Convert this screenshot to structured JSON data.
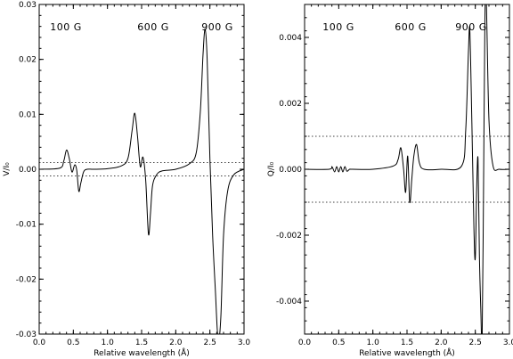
{
  "chart_data": [
    {
      "type": "line",
      "panel": "left",
      "xlabel": "Relative wavelength (Å)",
      "ylabel": "V/I₀",
      "xlim": [
        0.0,
        3.0
      ],
      "ylim": [
        -0.03,
        0.03
      ],
      "xticks": [
        "0.0",
        "0.5",
        "1.0",
        "1.5",
        "2.0",
        "2.5",
        "3.0"
      ],
      "yticks": [
        "-0.03",
        "-0.02",
        "-0.01",
        "0.00",
        "0.01",
        "0.02",
        "0.03"
      ],
      "annotations": [
        "100 G",
        "600 G",
        "900 G"
      ],
      "thresholds": [
        0.0012,
        -0.0012
      ],
      "series": [
        {
          "x": [
            0.0,
            0.3,
            0.36,
            0.4,
            0.44,
            0.48,
            0.52,
            0.55,
            0.58,
            0.61,
            0.65,
            0.7,
            0.8,
            1.0,
            1.2,
            1.3,
            1.36,
            1.4,
            1.44,
            1.48,
            1.52,
            1.56,
            1.6,
            1.63,
            1.66,
            1.72,
            1.8,
            2.0,
            2.2,
            2.3,
            2.36,
            2.4,
            2.43,
            2.46,
            2.5,
            2.54,
            2.58,
            2.62,
            2.66,
            2.7,
            2.76,
            2.85,
            3.0
          ],
          "values": [
            0.0,
            0.0002,
            0.0015,
            0.0035,
            0.002,
            -0.0005,
            0.0008,
            -0.0002,
            -0.004,
            -0.0025,
            -0.0005,
            0.0,
            0.0,
            0.0001,
            0.0006,
            0.002,
            0.007,
            0.0102,
            0.006,
            0.0005,
            0.0022,
            -0.002,
            -0.0118,
            -0.008,
            -0.003,
            -0.001,
            -0.0003,
            0.0,
            0.001,
            0.003,
            0.0105,
            0.021,
            0.0255,
            0.02,
            0.002,
            -0.012,
            -0.022,
            -0.031,
            -0.027,
            -0.012,
            -0.004,
            -0.001,
            0.0
          ]
        }
      ]
    },
    {
      "type": "line",
      "panel": "right",
      "xlabel": "Relative wavelength (Å)",
      "ylabel": "Q/I₀",
      "xlim": [
        0.0,
        3.0
      ],
      "ylim": [
        -0.005,
        0.005
      ],
      "xticks": [
        "0.0",
        "0.5",
        "1.0",
        "1.5",
        "2.0",
        "2.5",
        "3.0"
      ],
      "yticks": [
        "-0.004",
        "-0.002",
        "0.000",
        "0.002",
        "0.004"
      ],
      "annotations": [
        "100 G",
        "600 G",
        "900 G"
      ],
      "thresholds": [
        0.001,
        -0.001
      ],
      "series": [
        {
          "x": [
            0.0,
            0.36,
            0.4,
            0.44,
            0.47,
            0.5,
            0.53,
            0.56,
            0.59,
            0.62,
            0.66,
            0.7,
            1.0,
            1.3,
            1.37,
            1.41,
            1.45,
            1.48,
            1.51,
            1.54,
            1.57,
            1.6,
            1.64,
            1.68,
            1.75,
            2.0,
            2.3,
            2.36,
            2.4,
            2.42,
            2.45,
            2.48,
            2.5,
            2.52,
            2.54,
            2.56,
            2.58,
            2.6,
            2.62,
            2.64,
            2.66,
            2.7,
            2.76,
            2.85,
            3.0
          ],
          "values": [
            0.0,
            0.0,
            8e-05,
            -8e-05,
            8e-05,
            -8e-05,
            8e-05,
            -8e-05,
            8e-05,
            -6e-05,
            0.0,
            0.0,
            0.0,
            0.0001,
            0.0003,
            0.00065,
            0.0,
            -0.0007,
            0.0004,
            -0.001,
            -0.0003,
            0.0004,
            0.00075,
            0.0002,
            0.0,
            0.0,
            0.0001,
            0.0012,
            0.0036,
            0.0042,
            0.0014,
            -0.0018,
            -0.0027,
            -0.0006,
            0.0003,
            -0.0026,
            -0.0042,
            -0.0052,
            -0.0008,
            0.0044,
            0.0052,
            0.0015,
            0.0001,
            0.0,
            0.0
          ]
        }
      ]
    }
  ]
}
